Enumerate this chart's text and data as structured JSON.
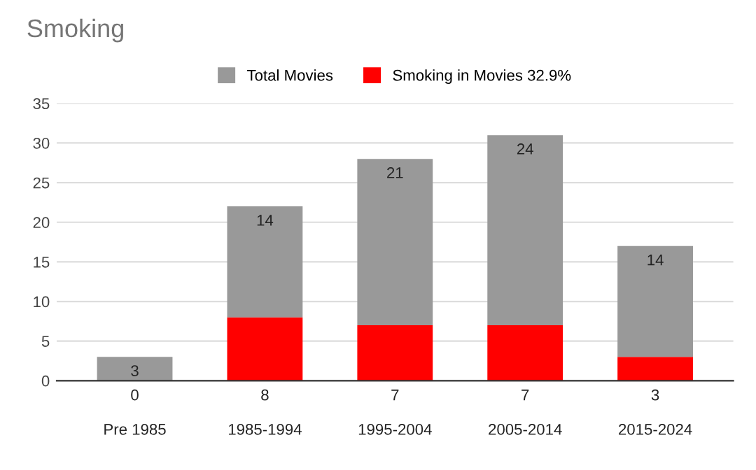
{
  "chart_data": {
    "type": "bar",
    "title": "Smoking",
    "categories": [
      "Pre 1985",
      "1985-1994",
      "1995-2004",
      "2005-2014",
      "2015-2024"
    ],
    "stacked": true,
    "series": [
      {
        "name": "Smoking in Movies 32.9%",
        "color": "#ff0000",
        "values": [
          0,
          8,
          7,
          7,
          3
        ]
      },
      {
        "name": "Total Movies",
        "color": "#999999",
        "values": [
          3,
          14,
          21,
          24,
          14
        ]
      }
    ],
    "ylim": [
      0,
      35
    ],
    "yticks": [
      0,
      5,
      10,
      15,
      20,
      25,
      30,
      35
    ],
    "grid": "y",
    "legend": "top",
    "data_labels": true
  }
}
